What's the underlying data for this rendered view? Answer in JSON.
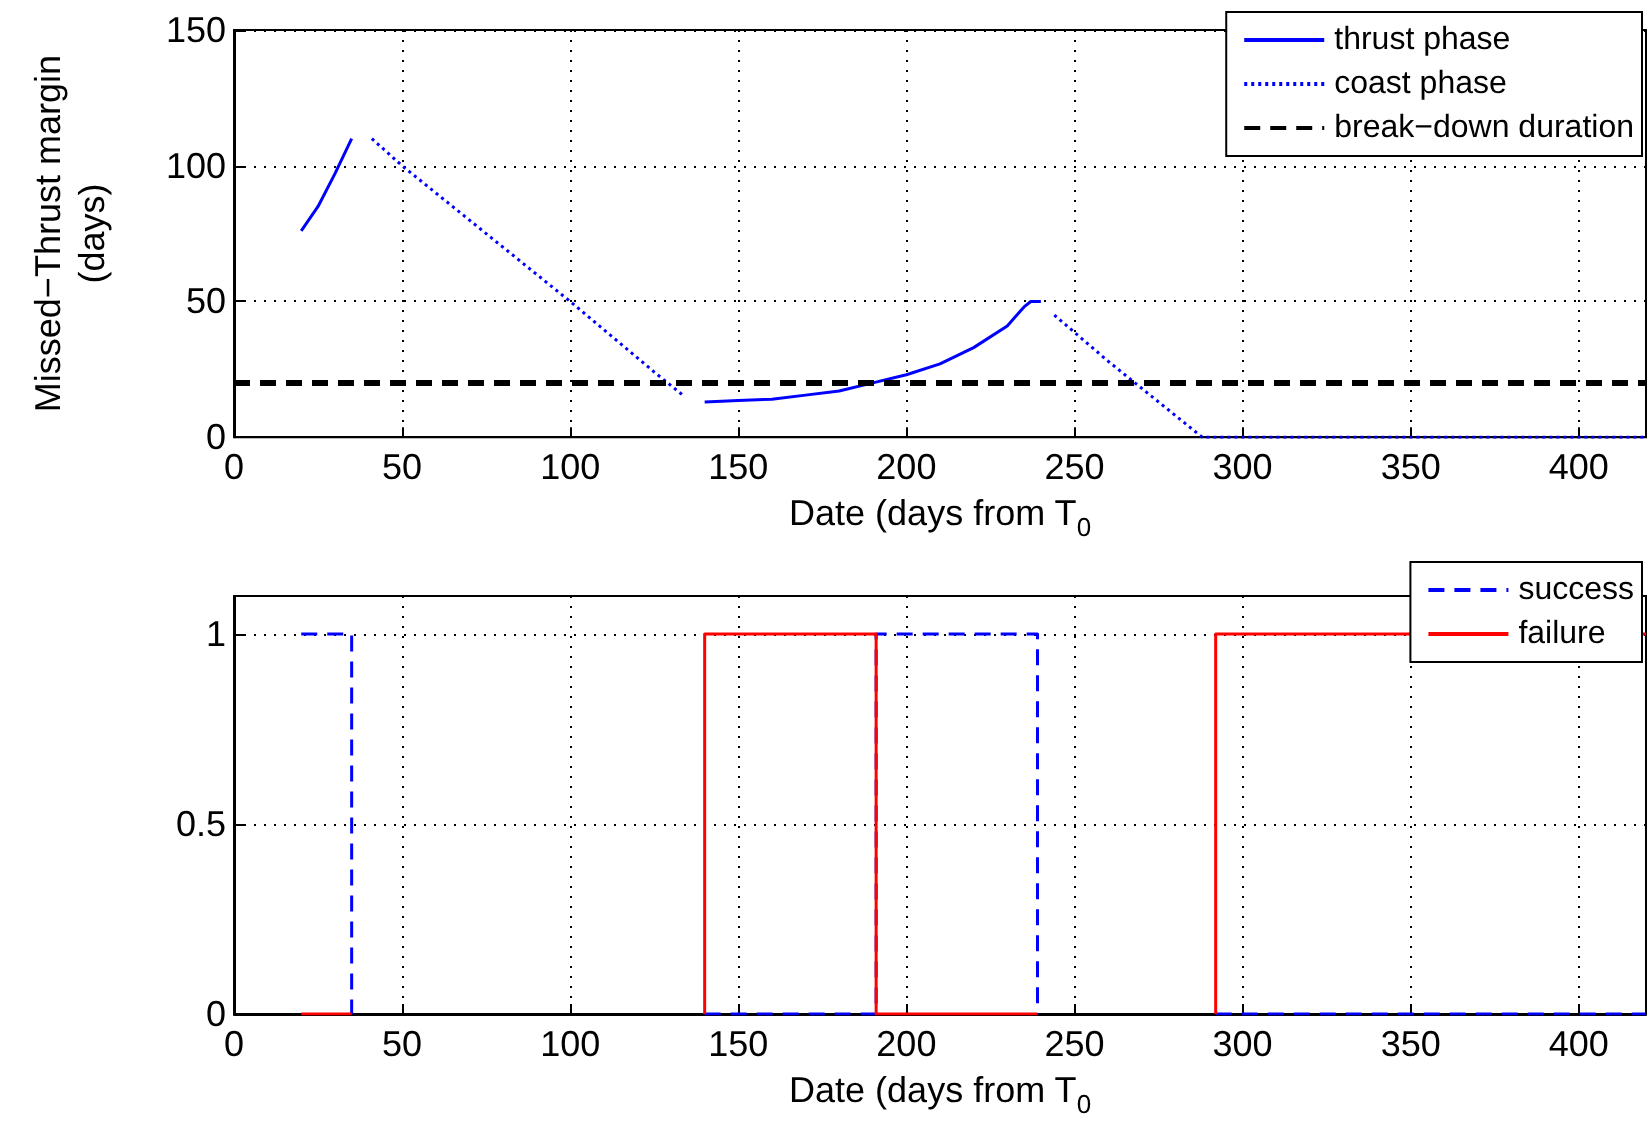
{
  "chart_data": [
    {
      "type": "line",
      "ylabel": "Missed−Thrust margin (days)",
      "xlabel": "Date (days from T$_{0}$",
      "xlim": [
        0,
        420
      ],
      "xticks": [
        0,
        50,
        100,
        150,
        200,
        250,
        300,
        350,
        400
      ],
      "ylim": [
        0,
        150
      ],
      "yticks": [
        0,
        50,
        100,
        150
      ],
      "grid": true,
      "legend": "top right",
      "marker": "none",
      "series": [
        {
          "name": "thrust phase",
          "color": "#0000ff",
          "line_style": "solid",
          "x": [
            20,
            25,
            30,
            35,
            90,
            140,
            150,
            160,
            170,
            180,
            190,
            200,
            210,
            220,
            230,
            235,
            237,
            240
          ],
          "values": [
            76,
            85,
            97,
            110,
            null,
            13,
            13.5,
            14,
            15.5,
            17,
            20,
            23,
            27,
            33,
            41,
            48,
            50,
            50
          ]
        },
        {
          "name": "coast phase",
          "color": "#0000ff",
          "line_style": "dotted",
          "x": [
            41,
            50,
            75,
            100,
            125,
            134,
            190,
            244,
            260,
            275,
            288,
            420
          ],
          "values": [
            110,
            100,
            75,
            50,
            24,
            15,
            null,
            45,
            28,
            13,
            0,
            0
          ]
        }
      ],
      "ref_lines": [
        {
          "axis": "y",
          "value": 20,
          "label": "break−down duration",
          "color": "#000000",
          "line_style": "dashed"
        }
      ]
    },
    {
      "type": "line",
      "xlabel": "Date (days from T$_{0}$",
      "xlim": [
        0,
        420
      ],
      "xticks": [
        0,
        50,
        100,
        150,
        200,
        250,
        300,
        350,
        400
      ],
      "ylim": [
        0,
        1.1
      ],
      "yticks": [
        0,
        0.5,
        1
      ],
      "grid": true,
      "legend": "top right",
      "marker": "none",
      "series": [
        {
          "name": "success",
          "color": "#0000ff",
          "line_style": "dashed",
          "x": [
            20,
            35,
            35,
            100,
            140,
            191,
            191,
            239,
            239,
            260,
            292,
            420
          ],
          "values": [
            1,
            1,
            0,
            null,
            0,
            0,
            1,
            1,
            0,
            null,
            0,
            0
          ]
        },
        {
          "name": "failure",
          "color": "#ff0000",
          "line_style": "solid",
          "x": [
            20,
            35,
            100,
            140,
            140,
            191,
            191,
            239,
            260,
            292,
            292,
            420
          ],
          "values": [
            0,
            0,
            null,
            0,
            1,
            1,
            0,
            0,
            null,
            0,
            1,
            1
          ]
        }
      ]
    }
  ]
}
